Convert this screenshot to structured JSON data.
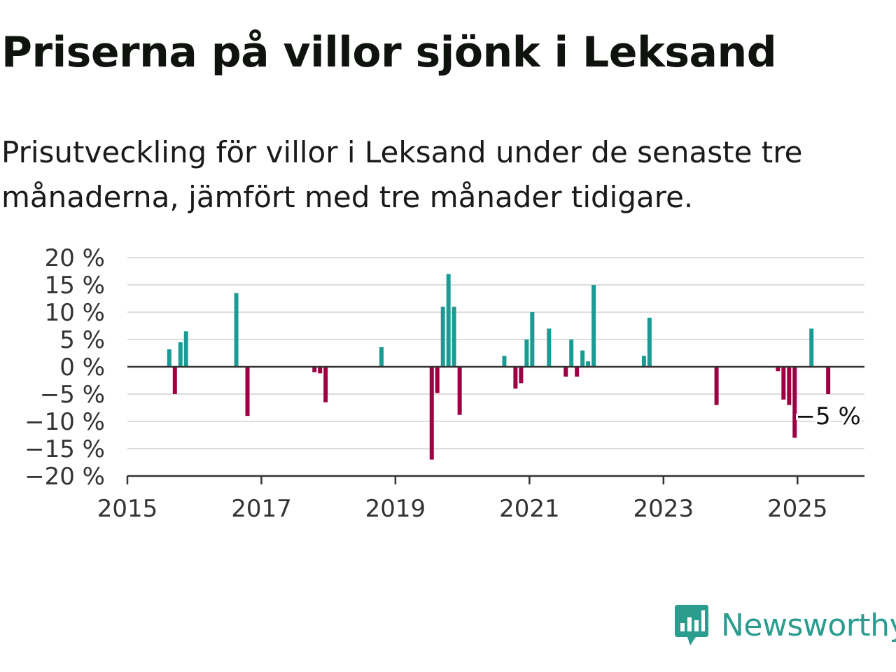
{
  "title": "Priserna på villor sjönk i Leksand",
  "subtitle": "Prisutveckling för villor i Leksand under de senaste tre månaderna, jämfört med tre månader tidigare.",
  "brand": {
    "name": "Newsworthy",
    "icon": "newsworthy-chart-bubble-icon",
    "color": "#2a9d8f"
  },
  "colors": {
    "positive": "#1a9c94",
    "negative": "#9c0043",
    "grid": "#dddddd",
    "axis": "#333333"
  },
  "chart_data": {
    "type": "bar",
    "xlabel": "",
    "ylabel": "",
    "ylim": [
      -20,
      20
    ],
    "xlim": [
      "2015-01",
      "2025-12"
    ],
    "yticks": [
      20,
      15,
      10,
      5,
      0,
      -5,
      -10,
      -15,
      -20
    ],
    "ytick_labels": [
      "20 %",
      "15 %",
      "10 %",
      "5 %",
      "0 %",
      "−5 %",
      "−10 %",
      "−15 %",
      "−20 %"
    ],
    "xtick_labels": [
      "2015",
      "2017",
      "2019",
      "2021",
      "2023",
      "2025"
    ],
    "grid": true,
    "legend": "none",
    "series": [
      {
        "values": [
          {
            "x": "2015-08",
            "y": 3.2
          },
          {
            "x": "2015-09",
            "y": -5.0
          },
          {
            "x": "2015-10",
            "y": 4.5
          },
          {
            "x": "2015-11",
            "y": 6.5
          },
          {
            "x": "2016-08",
            "y": 13.5
          },
          {
            "x": "2016-10",
            "y": -9.0
          },
          {
            "x": "2017-10",
            "y": -1.0
          },
          {
            "x": "2017-11",
            "y": -1.2
          },
          {
            "x": "2017-12",
            "y": -6.5
          },
          {
            "x": "2018-10",
            "y": 3.6
          },
          {
            "x": "2019-07",
            "y": -17.0
          },
          {
            "x": "2019-08",
            "y": -4.8
          },
          {
            "x": "2019-09",
            "y": 11.0
          },
          {
            "x": "2019-10",
            "y": 17.0
          },
          {
            "x": "2019-11",
            "y": 11.0
          },
          {
            "x": "2019-12",
            "y": -8.8
          },
          {
            "x": "2020-08",
            "y": 2.0
          },
          {
            "x": "2020-10",
            "y": -4.0
          },
          {
            "x": "2020-11",
            "y": -3.0
          },
          {
            "x": "2020-12",
            "y": 5.0
          },
          {
            "x": "2021-01",
            "y": 10.0
          },
          {
            "x": "2021-04",
            "y": 7.0
          },
          {
            "x": "2021-07",
            "y": -1.8
          },
          {
            "x": "2021-08",
            "y": 5.0
          },
          {
            "x": "2021-09",
            "y": -1.8
          },
          {
            "x": "2021-10",
            "y": 3.0
          },
          {
            "x": "2021-11",
            "y": 1.0
          },
          {
            "x": "2021-12",
            "y": 15.0
          },
          {
            "x": "2022-09",
            "y": 2.0
          },
          {
            "x": "2022-10",
            "y": 9.0
          },
          {
            "x": "2023-10",
            "y": -7.0
          },
          {
            "x": "2024-09",
            "y": -0.8
          },
          {
            "x": "2024-10",
            "y": -6.0
          },
          {
            "x": "2024-11",
            "y": -7.0
          },
          {
            "x": "2024-12",
            "y": -13.0
          },
          {
            "x": "2025-03",
            "y": 7.0
          },
          {
            "x": "2025-06",
            "y": -5.0
          }
        ]
      }
    ],
    "annotation": {
      "text": "−5 %",
      "x": "2025-06"
    }
  }
}
